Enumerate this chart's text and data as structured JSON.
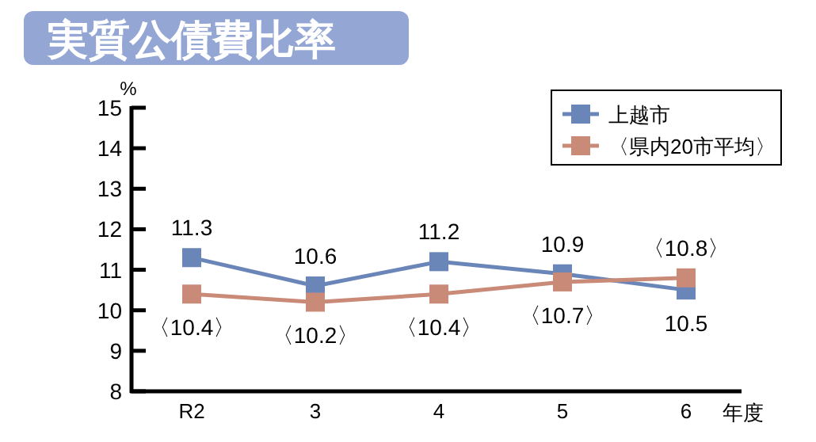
{
  "chart_data": {
    "type": "line",
    "title": "実質公債費比率",
    "ylabel": "%",
    "xlabel": "年度",
    "categories": [
      "R2",
      "3",
      "4",
      "5",
      "6"
    ],
    "ylim": [
      8,
      15
    ],
    "yticks": [
      8,
      9,
      10,
      11,
      12,
      13,
      14,
      15
    ],
    "marker": "square",
    "legend": "top right",
    "series": [
      {
        "name": "上越市",
        "color": "#6a86b8",
        "values": [
          11.3,
          10.6,
          11.2,
          10.9,
          10.5
        ],
        "value_labels": [
          "11.3",
          "10.6",
          "11.2",
          "10.9",
          "10.5"
        ]
      },
      {
        "name": "〈県内20市平均〉",
        "color": "#c98a78",
        "values": [
          10.4,
          10.2,
          10.4,
          10.7,
          10.8
        ],
        "value_labels": [
          "〈10.4〉",
          "〈10.2〉",
          "〈10.4〉",
          "〈10.7〉",
          "〈10.8〉"
        ]
      }
    ]
  }
}
